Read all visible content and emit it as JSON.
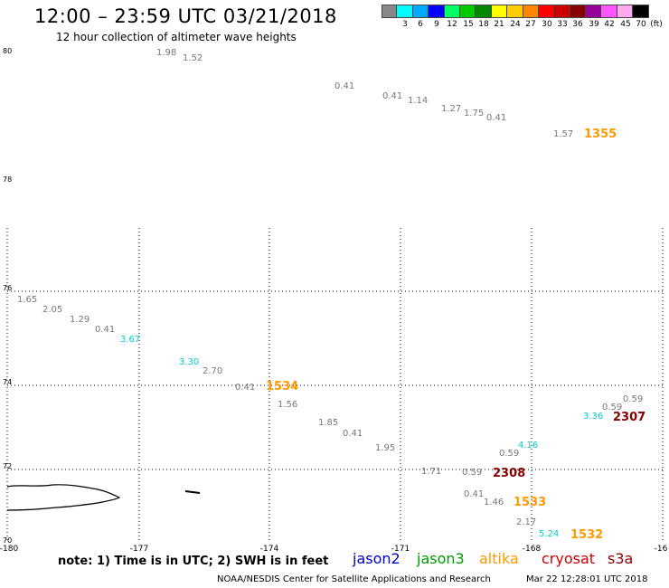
{
  "header": {
    "title": "12:00 – 23:59 UTC 03/21/2018",
    "subtitle": "12 hour collection of altimeter wave heights"
  },
  "legend": {
    "colors": [
      "#888888",
      "#00ffff",
      "#00aaff",
      "#0000ff",
      "#00ff66",
      "#00cc00",
      "#008800",
      "#ffff00",
      "#ffcc00",
      "#ff8800",
      "#ff0000",
      "#cc0000",
      "#880000",
      "#990099",
      "#ff55ff",
      "#ffaaee",
      "#000000"
    ],
    "labels": [
      "3",
      "6",
      "9",
      "12",
      "15",
      "18",
      "21",
      "24",
      "27",
      "30",
      "33",
      "36",
      "39",
      "42",
      "45",
      "70",
      "(ft)"
    ]
  },
  "map": {
    "lat_labels": [
      "80",
      "78",
      "76",
      "74",
      "72",
      "70"
    ],
    "lon_labels": [
      "-180",
      "-177",
      "-174",
      "-171",
      "-168",
      "-16"
    ],
    "wave_heights": [
      {
        "text": "1.98",
        "color": "#777777"
      },
      {
        "text": "1.52",
        "color": "#777777"
      },
      {
        "text": "0.41",
        "color": "#777777"
      },
      {
        "text": "0.41",
        "color": "#777777"
      },
      {
        "text": "1.14",
        "color": "#777777"
      },
      {
        "text": "1.27",
        "color": "#777777"
      },
      {
        "text": "1.75",
        "color": "#777777"
      },
      {
        "text": "0.41",
        "color": "#777777"
      },
      {
        "text": "1.57",
        "color": "#777777"
      },
      {
        "text": "1.65",
        "color": "#777777"
      },
      {
        "text": "2.05",
        "color": "#777777"
      },
      {
        "text": "1.29",
        "color": "#777777"
      },
      {
        "text": "0.41",
        "color": "#777777"
      },
      {
        "text": "3.67",
        "color": "#00cccc"
      },
      {
        "text": "3.30",
        "color": "#00cccc"
      },
      {
        "text": "2.70",
        "color": "#777777"
      },
      {
        "text": "0.41",
        "color": "#777777"
      },
      {
        "text": "1.56",
        "color": "#777777"
      },
      {
        "text": "1.85",
        "color": "#777777"
      },
      {
        "text": "0.41",
        "color": "#777777"
      },
      {
        "text": "1.95",
        "color": "#777777"
      },
      {
        "text": "1.71",
        "color": "#777777"
      },
      {
        "text": "0.59",
        "color": "#777777"
      },
      {
        "text": "0.59",
        "color": "#777777"
      },
      {
        "text": "4.16",
        "color": "#00cccc"
      },
      {
        "text": "0.41",
        "color": "#777777"
      },
      {
        "text": "1.46",
        "color": "#777777"
      },
      {
        "text": "2.17",
        "color": "#777777"
      },
      {
        "text": "5.24",
        "color": "#00cccc"
      },
      {
        "text": "3.36",
        "color": "#00cccc"
      },
      {
        "text": "0.59",
        "color": "#777777"
      },
      {
        "text": "0.59",
        "color": "#777777"
      }
    ],
    "pass_times": [
      {
        "text": "1355",
        "color": "#ff9900"
      },
      {
        "text": "1534",
        "color": "#ff9900"
      },
      {
        "text": "2308",
        "color": "#880000"
      },
      {
        "text": "1533",
        "color": "#ff9900"
      },
      {
        "text": "1532",
        "color": "#ff9900"
      },
      {
        "text": "2307",
        "color": "#880000"
      }
    ]
  },
  "note": "note:  1) Time is in UTC;  2) SWH is in feet",
  "satellites": [
    {
      "name": "jason2",
      "color": "#0000cc"
    },
    {
      "name": "jason3",
      "color": "#009900"
    },
    {
      "name": "altika",
      "color": "#ff9900"
    },
    {
      "name": "cryosat",
      "color": "#cc0000"
    },
    {
      "name": "s3a",
      "color": "#880000"
    }
  ],
  "footer": {
    "credit": "NOAA/NESDIS Center for Satellite Applications and Research",
    "timestamp": "Mar 22 12:28:01 UTC 2018"
  }
}
